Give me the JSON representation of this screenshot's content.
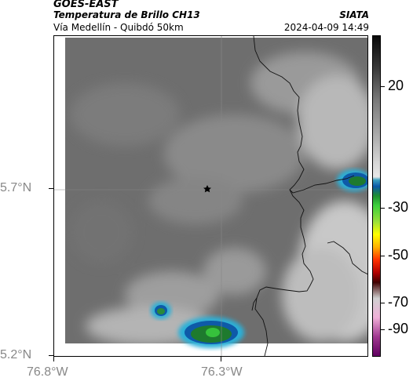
{
  "header": {
    "source": "GOES-EAST",
    "product": "Temperatura de Brillo CH13",
    "route": "Vía Medellín - Quibdó 50km",
    "brand": "SIATA",
    "timestamp": "2024-04-09 14:49"
  },
  "map": {
    "lat_labels": [
      "5.7°N",
      "5.2°N"
    ],
    "lon_labels": [
      "76.8°W",
      "76.3°W"
    ],
    "marker": "star-marker"
  },
  "colorbar": {
    "ticks": [
      "20",
      "-30",
      "-50",
      "-70",
      "-90"
    ]
  }
}
